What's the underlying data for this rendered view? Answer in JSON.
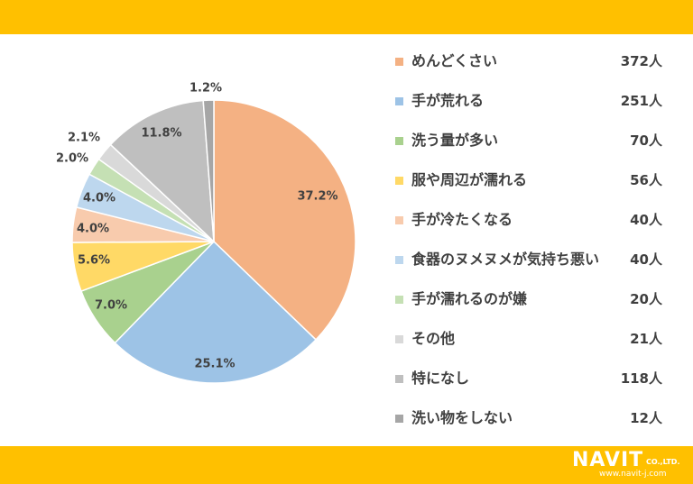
{
  "logo": {
    "main": "NAVIT",
    "sub": "CO.,LTD.",
    "url": "www.navit-j.com"
  },
  "chart_data": {
    "type": "pie",
    "categories": [
      "めんどくさい",
      "手が荒れる",
      "洗う量が多い",
      "服や周辺が濡れる",
      "手が冷たくなる",
      "食器のヌメヌメが気持ち悪い",
      "手が濡れるのが嫌",
      "その他",
      "特になし",
      "洗い物をしない"
    ],
    "values": [
      37.2,
      25.1,
      7.0,
      5.6,
      4.0,
      4.0,
      2.0,
      2.1,
      11.8,
      1.2
    ],
    "labels": [
      "37.2%",
      "25.1%",
      "7.0%",
      "5.6%",
      "4.0%",
      "4.0%",
      "2.0%",
      "2.1%",
      "11.8%",
      "1.2%"
    ],
    "counts": [
      "372人",
      "251人",
      "70人",
      "56人",
      "40人",
      "40人",
      "20人",
      "21人",
      "118人",
      "12人"
    ],
    "colors": [
      "#F4B183",
      "#9DC3E6",
      "#A9D18E",
      "#FFD966",
      "#F8CBAD",
      "#BDD7EE",
      "#C5E0B4",
      "#D9D9D9",
      "#BFBFBF",
      "#A6A6A6"
    ],
    "legend_position": "right"
  }
}
